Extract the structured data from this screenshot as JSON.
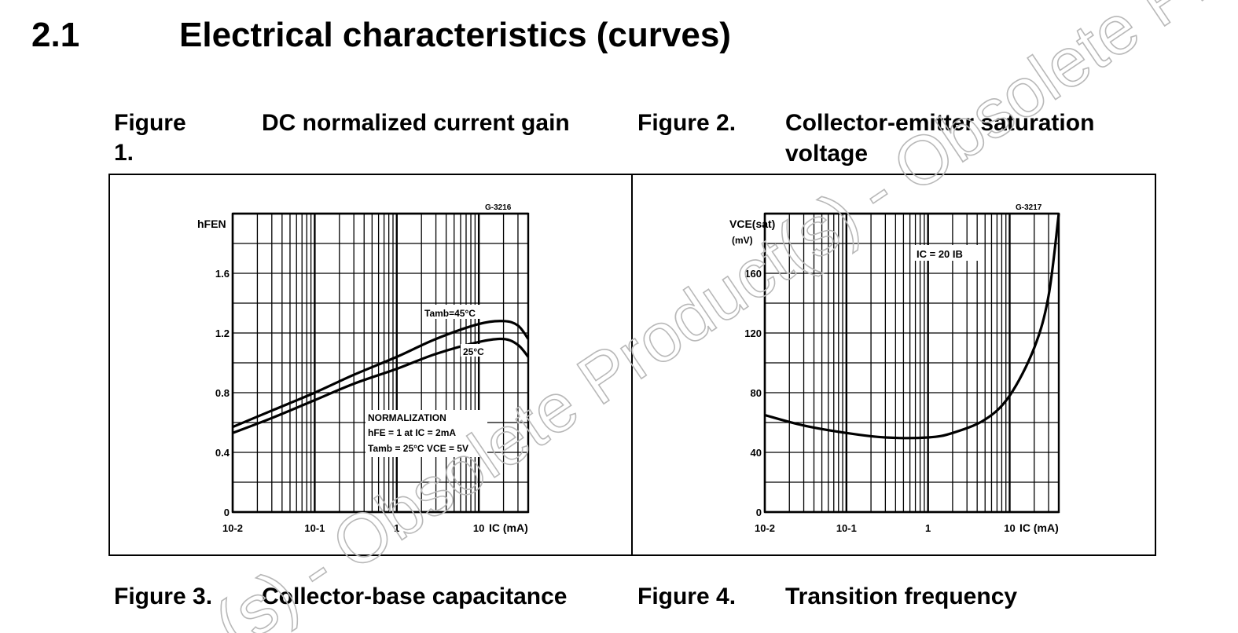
{
  "section": {
    "number": "2.1",
    "title": "Electrical characteristics (curves)"
  },
  "figures": [
    {
      "number": "Figure 1.",
      "title": "DC normalized current gain"
    },
    {
      "number": "Figure 2.",
      "title_line1": "Collector-emitter saturation",
      "title_line2": "voltage"
    },
    {
      "number": "Figure 3.",
      "title": "Collector-base capacitance"
    },
    {
      "number": "Figure 4.",
      "title": "Transition frequency"
    }
  ],
  "watermark": "(s) - Obsolete Product(s) - Obsolete Product(",
  "chart_data": [
    {
      "type": "line",
      "code": "G-3216",
      "ylabel": "hFEN",
      "xlabel": "IC (mA)",
      "x_scale": "log",
      "xlim": [
        0.01,
        40
      ],
      "ylim": [
        0,
        2.0
      ],
      "x_ticks": [
        "10-2",
        "10-1",
        "1",
        "10"
      ],
      "y_ticks": [
        "0",
        "0.4",
        "0.8",
        "1.2",
        "1.6"
      ],
      "grid": true,
      "series": [
        {
          "name": "Tamb=45°C",
          "x": [
            0.01,
            0.03,
            0.1,
            0.3,
            1,
            3,
            10,
            20,
            30,
            40
          ],
          "y": [
            0.57,
            0.68,
            0.8,
            0.92,
            1.04,
            1.16,
            1.26,
            1.28,
            1.25,
            1.16
          ]
        },
        {
          "name": "25°C",
          "x": [
            0.01,
            0.03,
            0.1,
            0.3,
            1,
            3,
            10,
            20,
            30,
            40
          ],
          "y": [
            0.53,
            0.63,
            0.75,
            0.86,
            0.96,
            1.06,
            1.14,
            1.16,
            1.12,
            1.04
          ]
        }
      ],
      "annotations": [
        "NORMALIZATION",
        "hFE = 1 at IC = 2mA",
        "Tamb = 25°C  VCE = 5V"
      ]
    },
    {
      "type": "line",
      "code": "G-3217",
      "ylabel": "VCE(sat)",
      "yunit": "(mV)",
      "xlabel": "IC (mA)",
      "x_scale": "log",
      "xlim": [
        0.01,
        40
      ],
      "ylim": [
        0,
        200
      ],
      "x_ticks": [
        "10-2",
        "10-1",
        "1",
        "10"
      ],
      "y_ticks": [
        "0",
        "40",
        "80",
        "120",
        "160"
      ],
      "grid": true,
      "series": [
        {
          "name": "IC = 20 IB",
          "x": [
            0.01,
            0.03,
            0.1,
            0.3,
            1,
            2,
            5,
            10,
            20,
            30,
            40
          ],
          "y": [
            65,
            58,
            53,
            50,
            50,
            53,
            62,
            78,
            110,
            145,
            200
          ]
        }
      ],
      "annotations": [
        "IC = 20 IB"
      ]
    }
  ]
}
